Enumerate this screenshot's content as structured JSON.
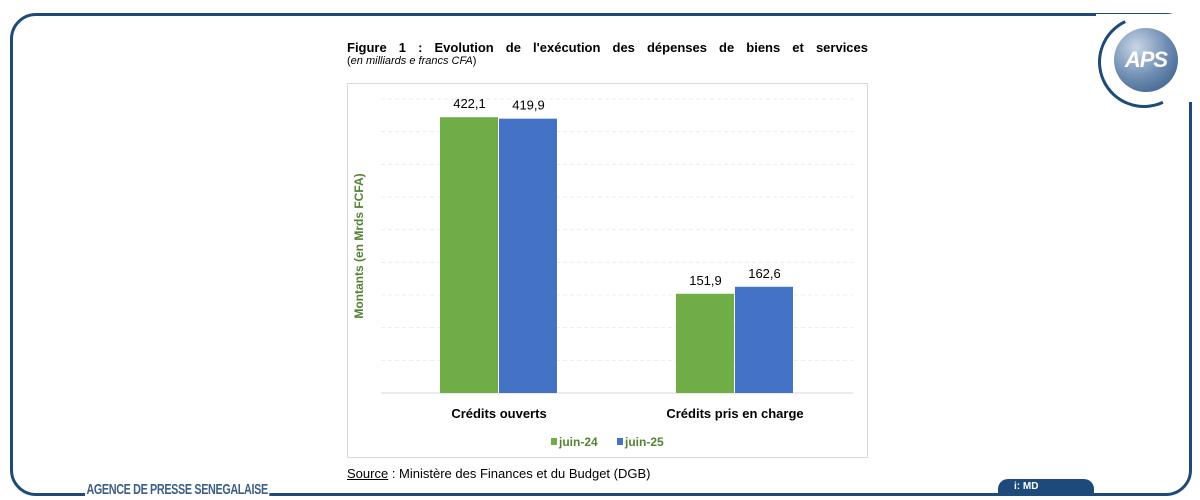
{
  "header": {
    "title": "Figure 1 : Evolution de l'exécution des dépenses de biens et services",
    "subtitle": "en milliards e francs CFA"
  },
  "logo": {
    "text": "APS"
  },
  "footer": {
    "source_label": "Source",
    "source_text": " : Ministère des Finances et du Budget (DGB)",
    "agency": "AGENCE DE PRESSE SENEGALAISE",
    "tab": "i: MD"
  },
  "colors": {
    "frame": "#1d4a78",
    "juin-24": "#70ad47",
    "juin-25": "#4472c4",
    "ylabel": "#548235"
  },
  "chart_data": {
    "type": "bar",
    "title": "Figure 1 : Evolution de l'exécution des dépenses de biens et services",
    "ylabel": "Montants (en Mrds FCFA)",
    "xlabel": "",
    "categories": [
      "Crédits ouverts",
      "Crédits pris en charge"
    ],
    "series": [
      {
        "name": "juin-24",
        "values": [
          422.1,
          151.9
        ],
        "labels": [
          "422,1",
          "151,9"
        ],
        "color": "#70ad47"
      },
      {
        "name": "juin-25",
        "values": [
          419.9,
          162.6
        ],
        "labels": [
          "419,9",
          "162,6"
        ],
        "color": "#4472c4"
      }
    ],
    "ylim": [
      0,
      450
    ],
    "grid": true,
    "gridstep": 50,
    "legend": "bottom"
  }
}
